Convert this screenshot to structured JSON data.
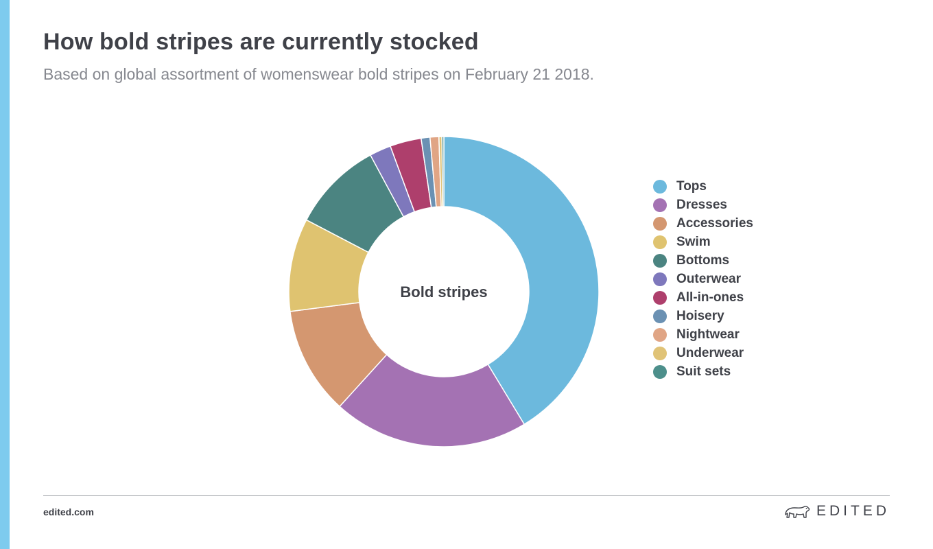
{
  "accent_color": "#7ecbee",
  "header": {
    "title": "How bold stripes are currently stocked",
    "subtitle": "Based on global assortment of womenswear bold stripes on February 21 2018."
  },
  "footer": {
    "url": "edited.com",
    "brand": "EDITED",
    "brand_icon": "polar-bear-icon"
  },
  "chart_data": {
    "type": "pie",
    "center_label": "Bold stripes",
    "legend_position": "right",
    "series": [
      {
        "name": "Tops",
        "value": 40.5,
        "color": "#6cb9dd"
      },
      {
        "name": "Dresses",
        "value": 20.0,
        "color": "#a472b3"
      },
      {
        "name": "Accessories",
        "value": 11.0,
        "color": "#d49770"
      },
      {
        "name": "Swim",
        "value": 9.5,
        "color": "#dfc370"
      },
      {
        "name": "Bottoms",
        "value": 9.3,
        "color": "#4b8481"
      },
      {
        "name": "Outerwear",
        "value": 2.2,
        "color": "#7e78bc"
      },
      {
        "name": "All-in-ones",
        "value": 3.2,
        "color": "#ae3f6c"
      },
      {
        "name": "Hoisery",
        "value": 0.9,
        "color": "#6b91b3"
      },
      {
        "name": "Nightwear",
        "value": 0.9,
        "color": "#e0a585"
      },
      {
        "name": "Underwear",
        "value": 0.3,
        "color": "#e0c377"
      },
      {
        "name": "Suit sets",
        "value": 0.2,
        "color": "#4d8f8b"
      }
    ]
  }
}
